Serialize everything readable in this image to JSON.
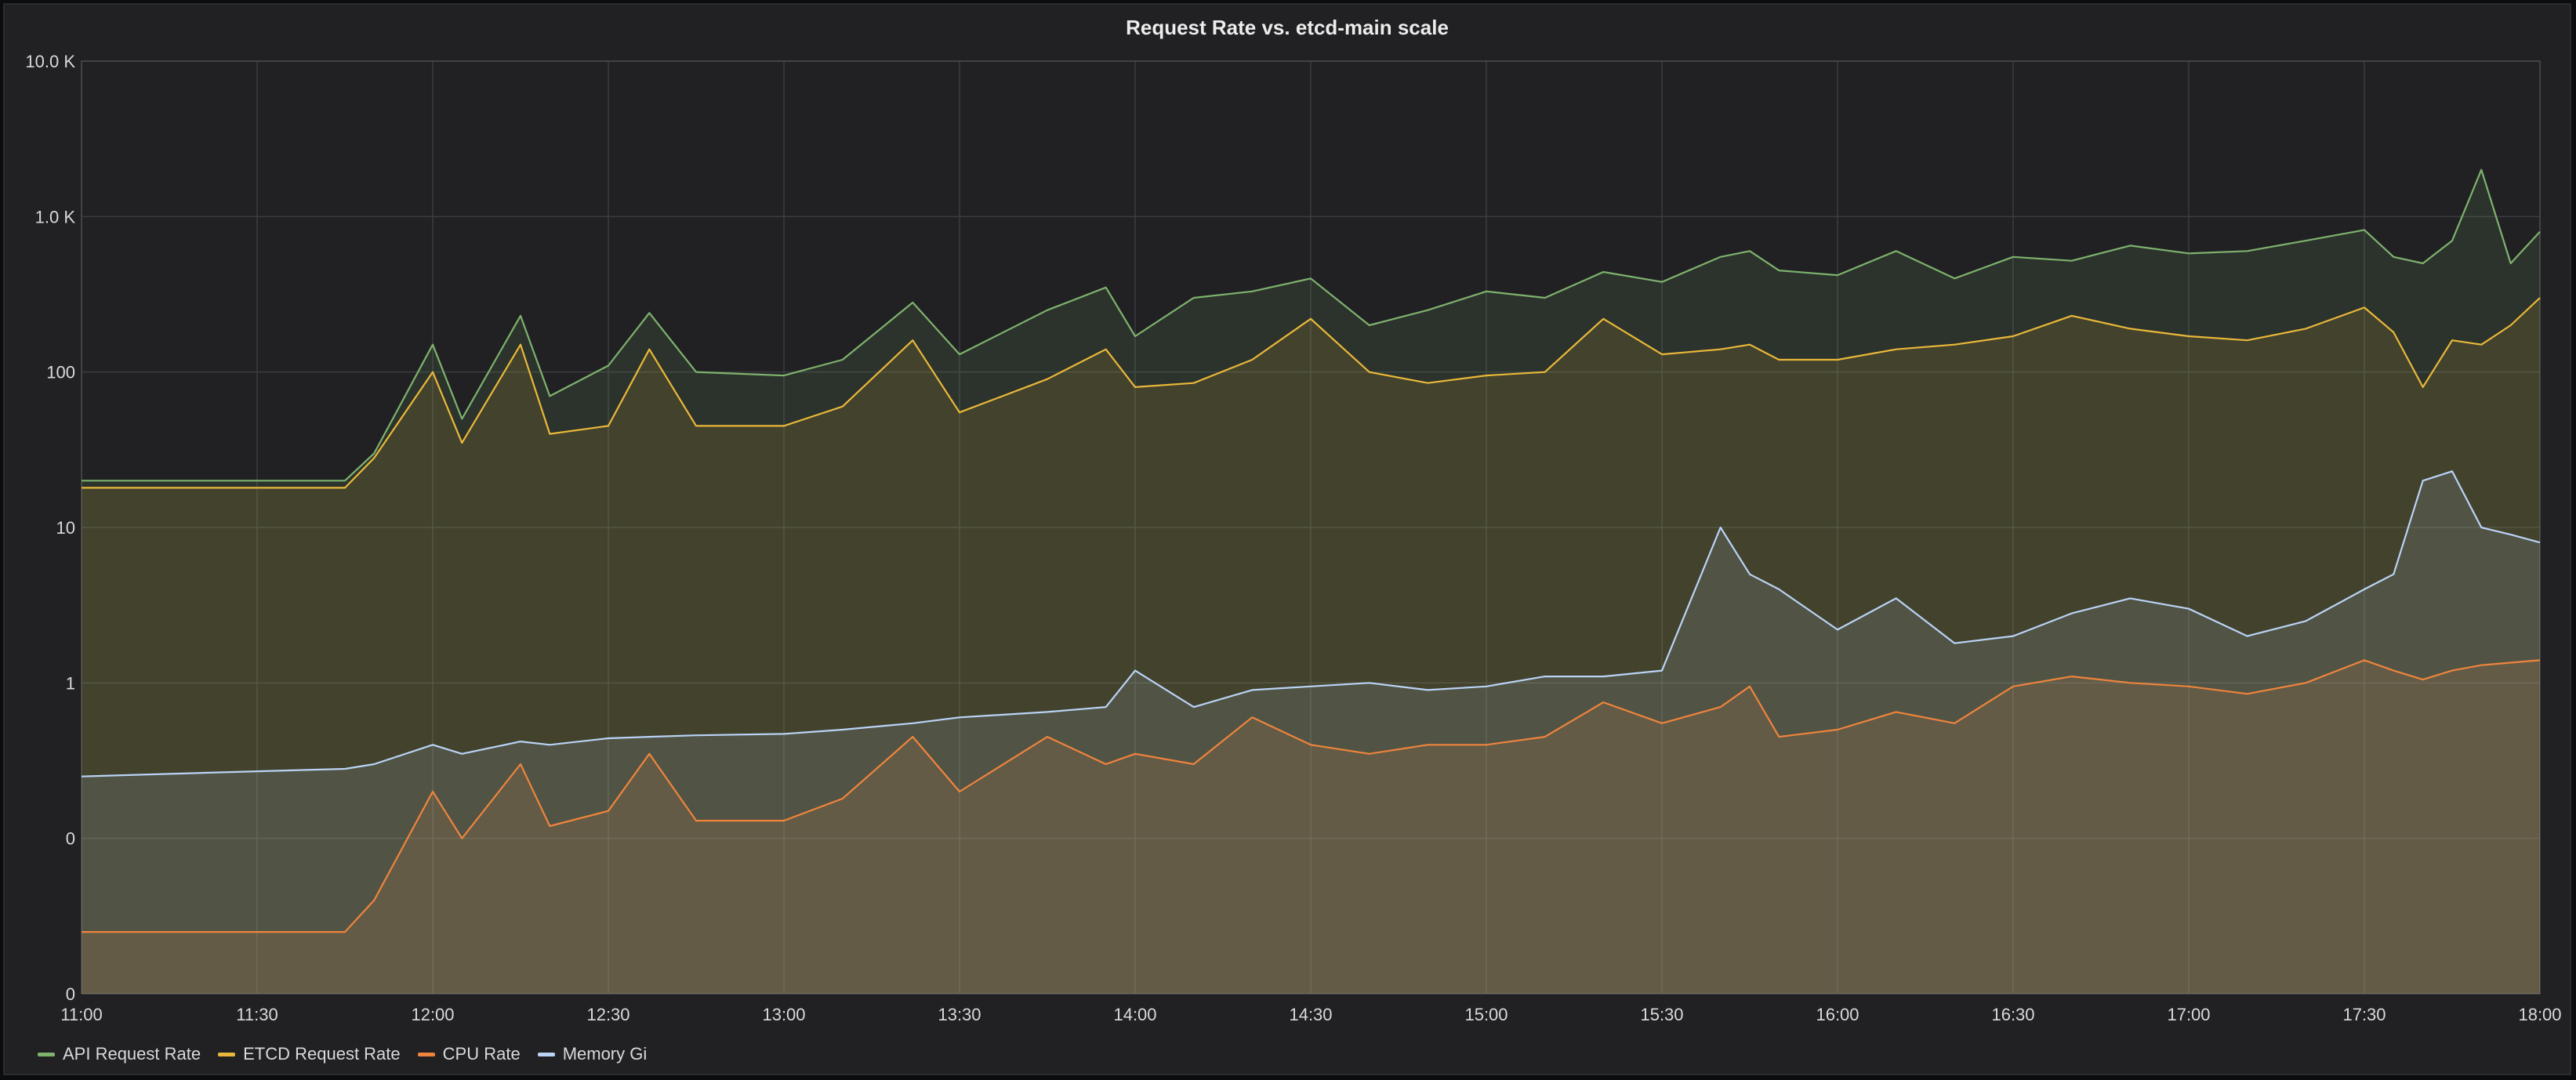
{
  "panel": {
    "title": "Request Rate vs. etcd-main scale"
  },
  "chart_data": {
    "type": "area",
    "title": "Request Rate vs. etcd-main scale",
    "xlabel": "",
    "ylabel": "",
    "y_scale": "log",
    "y_ticks": [
      "0",
      "0",
      "1",
      "10",
      "100",
      "1.0 K",
      "10.0 K"
    ],
    "x_ticks": [
      "11:00",
      "11:30",
      "12:00",
      "12:30",
      "13:00",
      "13:30",
      "14:00",
      "14:30",
      "15:00",
      "15:30",
      "16:00",
      "16:30",
      "17:00",
      "17:30",
      "18:00"
    ],
    "ylim": [
      0.01,
      10000
    ],
    "grid": true,
    "legend_position": "bottom-left",
    "x": [
      "11:00",
      "11:15",
      "11:30",
      "11:45",
      "11:50",
      "12:00",
      "12:05",
      "12:15",
      "12:20",
      "12:30",
      "12:37",
      "12:45",
      "13:00",
      "13:10",
      "13:22",
      "13:30",
      "13:45",
      "13:55",
      "14:00",
      "14:10",
      "14:20",
      "14:30",
      "14:40",
      "14:50",
      "15:00",
      "15:10",
      "15:20",
      "15:30",
      "15:40",
      "15:45",
      "15:50",
      "16:00",
      "16:10",
      "16:20",
      "16:30",
      "16:40",
      "16:50",
      "17:00",
      "17:10",
      "17:20",
      "17:30",
      "17:35",
      "17:40",
      "17:45",
      "17:50",
      "17:55",
      "18:00"
    ],
    "series": [
      {
        "name": "API Request Rate",
        "color": "#7eb26d",
        "values": [
          20,
          20,
          20,
          20,
          30,
          150,
          50,
          230,
          70,
          110,
          240,
          100,
          95,
          120,
          280,
          130,
          250,
          350,
          170,
          300,
          330,
          400,
          200,
          250,
          330,
          300,
          440,
          380,
          550,
          600,
          450,
          420,
          600,
          400,
          550,
          520,
          650,
          580,
          600,
          700,
          820,
          550,
          500,
          700,
          2000,
          500,
          800
        ]
      },
      {
        "name": "ETCD Request Rate",
        "color": "#eab839",
        "values": [
          18,
          18,
          18,
          18,
          28,
          100,
          35,
          150,
          40,
          45,
          140,
          45,
          45,
          60,
          160,
          55,
          90,
          140,
          80,
          85,
          120,
          220,
          100,
          85,
          95,
          100,
          220,
          130,
          140,
          150,
          120,
          120,
          140,
          150,
          170,
          230,
          190,
          170,
          160,
          190,
          260,
          180,
          80,
          160,
          150,
          200,
          300
        ]
      },
      {
        "name": "CPU Rate",
        "color": "#ef843c",
        "values": [
          0.025,
          0.025,
          0.025,
          0.025,
          0.04,
          0.2,
          0.1,
          0.3,
          0.12,
          0.15,
          0.35,
          0.13,
          0.13,
          0.18,
          0.45,
          0.2,
          0.45,
          0.3,
          0.35,
          0.3,
          0.6,
          0.4,
          0.35,
          0.4,
          0.4,
          0.45,
          0.75,
          0.55,
          0.7,
          0.95,
          0.45,
          0.5,
          0.65,
          0.55,
          0.95,
          1.1,
          1,
          0.95,
          0.85,
          1,
          1.4,
          1.2,
          1.05,
          1.2,
          1.3,
          1.35,
          1.4
        ]
      },
      {
        "name": "Memory Gi",
        "color": "#bad3f6",
        "values": [
          0.25,
          0.26,
          0.27,
          0.28,
          0.3,
          0.4,
          0.35,
          0.42,
          0.4,
          0.44,
          0.45,
          0.46,
          0.47,
          0.5,
          0.55,
          0.6,
          0.65,
          0.7,
          1.2,
          0.7,
          0.9,
          0.95,
          1,
          0.9,
          0.95,
          1.1,
          1.1,
          1.2,
          10,
          5,
          4,
          2.2,
          3.5,
          1.8,
          2,
          2.8,
          3.5,
          3,
          2,
          2.5,
          4,
          5,
          20,
          23,
          10,
          9,
          8
        ]
      }
    ]
  },
  "legend": {
    "items": [
      {
        "label": "API Request Rate",
        "color": "#7eb26d"
      },
      {
        "label": "ETCD Request Rate",
        "color": "#eab839"
      },
      {
        "label": "CPU Rate",
        "color": "#ef843c"
      },
      {
        "label": "Memory Gi",
        "color": "#bad3f6"
      }
    ]
  }
}
